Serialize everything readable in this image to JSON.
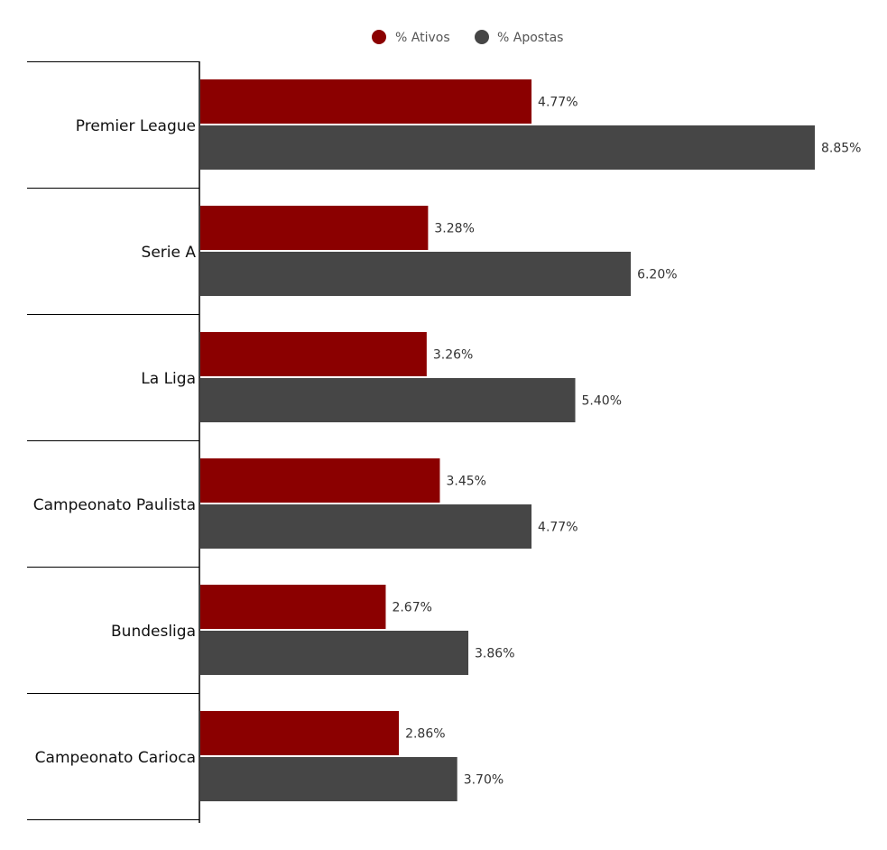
{
  "chart_data": {
    "type": "bar",
    "orientation": "horizontal",
    "categories": [
      "Premier League",
      "Serie A",
      "La Liga",
      "Campeonato Paulista",
      "Bundesliga",
      "Campeonato Carioca"
    ],
    "series": [
      {
        "name": "% Ativos",
        "color": "#8b0000",
        "values": [
          4.77,
          3.28,
          3.26,
          3.45,
          2.67,
          2.86
        ],
        "labels": [
          "4.77%",
          "3.28%",
          "3.26%",
          "3.45%",
          "2.67%",
          "2.86%"
        ]
      },
      {
        "name": "% Apostas",
        "color": "#464646",
        "values": [
          8.85,
          6.2,
          5.4,
          4.77,
          3.86,
          3.7
        ],
        "labels": [
          "8.85%",
          "6.20%",
          "5.40%",
          "4.77%",
          "3.86%",
          "3.70%"
        ]
      }
    ],
    "xlim": [
      0,
      8.85
    ],
    "legend": "top-center",
    "grid": false
  }
}
